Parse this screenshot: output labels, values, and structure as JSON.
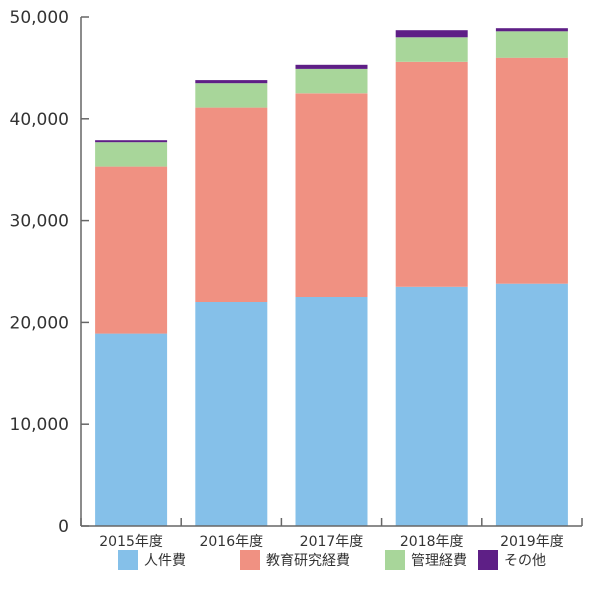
{
  "chart_data": {
    "type": "bar",
    "stacked": true,
    "categories": [
      "2015年度",
      "2016年度",
      "2017年度",
      "2018年度",
      "2019年度"
    ],
    "series": [
      {
        "name": "人件費",
        "color": "#85c0e9",
        "values": [
          18900,
          22000,
          22500,
          23500,
          23800
        ]
      },
      {
        "name": "教育研究経費",
        "color": "#f09182",
        "values": [
          16400,
          19100,
          20000,
          22100,
          22200
        ]
      },
      {
        "name": "管理経費",
        "color": "#a8d69a",
        "values": [
          2400,
          2400,
          2400,
          2400,
          2600
        ]
      },
      {
        "name": "その他",
        "color": "#5e1f86",
        "values": [
          200,
          300,
          400,
          700,
          300
        ]
      }
    ],
    "yticks": [
      "0",
      "10,000",
      "20,000",
      "30,000",
      "40,000",
      "50,000"
    ],
    "ylim": [
      0,
      50000
    ],
    "grid": false,
    "legend_position": "bottom"
  }
}
